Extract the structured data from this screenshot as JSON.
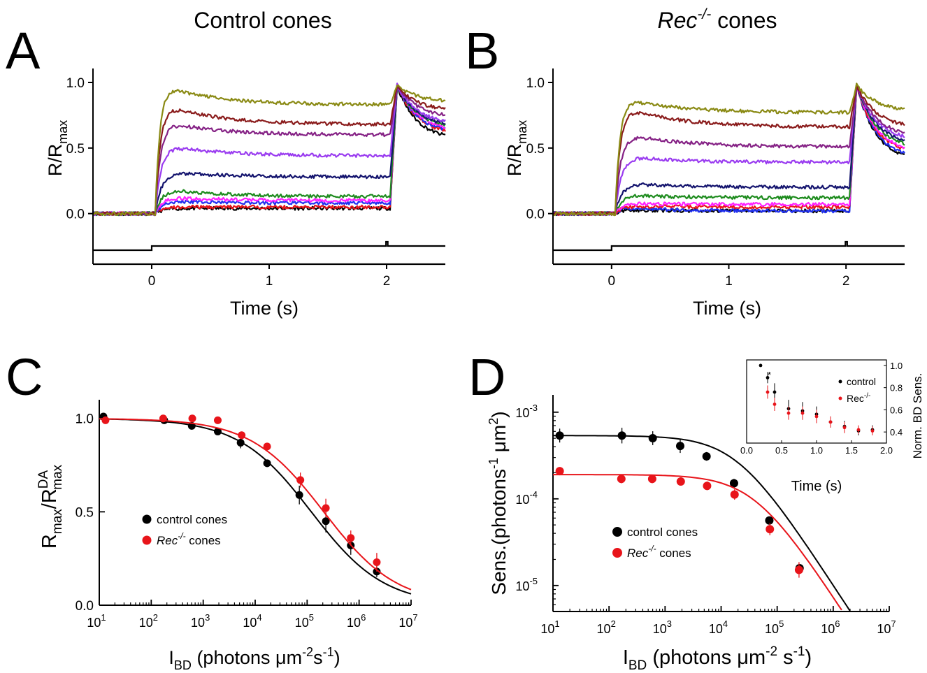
{
  "figure": {
    "panel_letters": [
      "A",
      "B",
      "C",
      "D"
    ],
    "titles": {
      "A": "Control cones",
      "B_prefix": "Rec",
      "B_super": "-/-",
      "B_suffix": " cones"
    }
  },
  "colors": {
    "black": "#000000",
    "red": "#e8141a",
    "blue": "#1f2ff0",
    "magenta": "#ff20ff",
    "green": "#1d8b1d",
    "navy": "#14146e",
    "violet": "#9a3cf0",
    "purple": "#852185",
    "maroon": "#8a1b1b",
    "olive": "#8a8a14"
  },
  "chart_data": [
    {
      "panel": "A",
      "type": "line",
      "title": "Control cones",
      "xlabel": "Time (s)",
      "ylabel": {
        "main": "R/R",
        "sub": "max"
      },
      "xlim": [
        -0.5,
        2.5
      ],
      "ylim": [
        -0.05,
        1.08
      ],
      "xticks": [
        0,
        1,
        2
      ],
      "yticks": [
        0.0,
        0.5,
        1.0
      ],
      "ytick_labels": [
        "0.0",
        "0.5",
        "1.0"
      ],
      "step_on": 0,
      "step_off": 2.03,
      "series": [
        {
          "color": "black",
          "plateau": 0.04,
          "early": 0.04,
          "peak2": 0.97,
          "end": 0.56
        },
        {
          "color": "red",
          "plateau": 0.05,
          "early": 0.05,
          "peak2": 0.98,
          "end": 0.6
        },
        {
          "color": "blue",
          "plateau": 0.08,
          "early": 0.1,
          "peak2": 0.98,
          "end": 0.61
        },
        {
          "color": "magenta",
          "plateau": 0.1,
          "early": 0.13,
          "peak2": 0.98,
          "end": 0.63
        },
        {
          "color": "green",
          "plateau": 0.13,
          "early": 0.2,
          "peak2": 0.98,
          "end": 0.65
        },
        {
          "color": "navy",
          "plateau": 0.28,
          "early": 0.33,
          "peak2": 0.98,
          "end": 0.66
        },
        {
          "color": "violet",
          "plateau": 0.44,
          "early": 0.54,
          "peak2": 0.98,
          "end": 0.68
        },
        {
          "color": "purple",
          "plateau": 0.6,
          "early": 0.72,
          "peak2": 0.98,
          "end": 0.73
        },
        {
          "color": "maroon",
          "plateau": 0.68,
          "early": 0.86,
          "peak2": 0.98,
          "end": 0.78
        },
        {
          "color": "olive",
          "plateau": 0.83,
          "early": 1.0,
          "peak2": 0.98,
          "end": 0.85
        }
      ]
    },
    {
      "panel": "B",
      "type": "line",
      "title": "Rec-/- cones",
      "xlabel": "Time (s)",
      "ylabel": {
        "main": "R/R",
        "sub": "max"
      },
      "xlim": [
        -0.5,
        2.5
      ],
      "ylim": [
        -0.05,
        1.08
      ],
      "xticks": [
        0,
        1,
        2
      ],
      "yticks": [
        0.0,
        0.5,
        1.0
      ],
      "ytick_labels": [
        "0.0",
        "0.5",
        "1.0"
      ],
      "step_on": 0,
      "step_off": 2.03,
      "series": [
        {
          "color": "black",
          "plateau": 0.02,
          "early": 0.03,
          "peak2": 0.98,
          "end": 0.39
        },
        {
          "color": "blue",
          "plateau": 0.02,
          "early": 0.05,
          "peak2": 0.98,
          "end": 0.41
        },
        {
          "color": "red",
          "plateau": 0.05,
          "early": 0.06,
          "peak2": 0.98,
          "end": 0.44
        },
        {
          "color": "magenta",
          "plateau": 0.07,
          "early": 0.08,
          "peak2": 0.98,
          "end": 0.46
        },
        {
          "color": "green",
          "plateau": 0.12,
          "early": 0.15,
          "peak2": 0.98,
          "end": 0.49
        },
        {
          "color": "navy",
          "plateau": 0.2,
          "early": 0.24,
          "peak2": 0.98,
          "end": 0.52
        },
        {
          "color": "violet",
          "plateau": 0.39,
          "early": 0.45,
          "peak2": 0.98,
          "end": 0.55
        },
        {
          "color": "purple",
          "plateau": 0.51,
          "early": 0.63,
          "peak2": 0.98,
          "end": 0.58
        },
        {
          "color": "maroon",
          "plateau": 0.66,
          "early": 0.84,
          "peak2": 0.98,
          "end": 0.65
        },
        {
          "color": "olive",
          "plateau": 0.77,
          "early": 0.9,
          "peak2": 0.98,
          "end": 0.78
        }
      ]
    },
    {
      "panel": "C",
      "type": "scatter",
      "xlabel": {
        "main": "I",
        "sub": "BD",
        "rest": " (photons μm",
        "sup1": "-2",
        "rest2": "s",
        "sup2": "-1",
        "close": ")"
      },
      "ylabel": {
        "main": "R",
        "sub": "max",
        "slash": "/R",
        "sup": "DA",
        "sub2": "max"
      },
      "xscale": "log",
      "xlim": [
        1,
        7
      ],
      "ylim": [
        0,
        1.1
      ],
      "xticks": [
        1,
        2,
        3,
        4,
        5,
        6,
        7
      ],
      "xtick_base": "10",
      "yticks": [
        0.0,
        0.5,
        1.0
      ],
      "ytick_labels": [
        "0.0",
        "0.5",
        "1.0"
      ],
      "legend": {
        "position": "center-left",
        "entries": [
          {
            "color": "black",
            "label": "control cones"
          },
          {
            "color": "red",
            "label_italic": "Rec",
            "label_super": "-/-",
            "label_rest": " cones"
          }
        ]
      },
      "series": [
        {
          "name": "control cones",
          "color": "black",
          "fit_half": 5.08,
          "fit_slope": 0.62,
          "points": [
            {
              "x": 1.08,
              "y": 1.01,
              "err": 0.01
            },
            {
              "x": 2.25,
              "y": 0.99,
              "err": 0.01
            },
            {
              "x": 2.78,
              "y": 0.96,
              "err": 0.02
            },
            {
              "x": 3.28,
              "y": 0.93,
              "err": 0.01
            },
            {
              "x": 3.72,
              "y": 0.87,
              "err": 0.03
            },
            {
              "x": 4.23,
              "y": 0.76,
              "err": 0.02
            },
            {
              "x": 4.85,
              "y": 0.59,
              "err": 0.05
            },
            {
              "x": 5.36,
              "y": 0.45,
              "err": 0.06
            },
            {
              "x": 5.84,
              "y": 0.32,
              "err": 0.05
            },
            {
              "x": 6.34,
              "y": 0.18,
              "err": 0.03
            }
          ]
        },
        {
          "name": "Rec-/- cones",
          "color": "red",
          "fit_half": 5.32,
          "fit_slope": 0.62,
          "points": [
            {
              "x": 1.12,
              "y": 0.99,
              "err": 0.01
            },
            {
              "x": 2.23,
              "y": 1.0,
              "err": 0.01
            },
            {
              "x": 2.79,
              "y": 1.0,
              "err": 0.01
            },
            {
              "x": 3.28,
              "y": 0.99,
              "err": 0.01
            },
            {
              "x": 3.74,
              "y": 0.91,
              "err": 0.02
            },
            {
              "x": 4.23,
              "y": 0.85,
              "err": 0.02
            },
            {
              "x": 4.87,
              "y": 0.67,
              "err": 0.04
            },
            {
              "x": 5.36,
              "y": 0.52,
              "err": 0.05
            },
            {
              "x": 5.84,
              "y": 0.36,
              "err": 0.04
            },
            {
              "x": 6.34,
              "y": 0.23,
              "err": 0.05
            }
          ]
        }
      ]
    },
    {
      "panel": "D",
      "type": "scatter",
      "xlabel": {
        "main": "I",
        "sub": "BD",
        "rest": " (photons μm",
        "sup1": "-2",
        "rest2": " s",
        "sup2": "-1",
        "close": ")"
      },
      "ylabel": {
        "main": "Sens.(photons",
        "sup1": "-1",
        "rest": " μm",
        "sup2": "2",
        "close": ")"
      },
      "xscale": "log",
      "yscale": "log",
      "xlim": [
        1,
        7
      ],
      "ylim": [
        -5.3,
        -2.8
      ],
      "xticks": [
        1,
        2,
        3,
        4,
        5,
        6,
        7
      ],
      "yticks": [
        -5,
        -4,
        -3
      ],
      "tick_base": "10",
      "legend": {
        "position": "lower-left",
        "entries": [
          {
            "color": "black",
            "label": "control cones"
          },
          {
            "color": "red",
            "label_italic": "Rec",
            "label_super": "-/-",
            "label_rest": " cones"
          }
        ]
      },
      "series": [
        {
          "name": "control cones",
          "color": "black",
          "fit_s0": -3.27,
          "fit_half": 4.28,
          "points": [
            {
              "x": 1.12,
              "y": -3.27,
              "err": 0.08
            },
            {
              "x": 2.23,
              "y": -3.27,
              "err": 0.09
            },
            {
              "x": 2.78,
              "y": -3.3,
              "err": 0.08
            },
            {
              "x": 3.27,
              "y": -3.39,
              "err": 0.08
            },
            {
              "x": 3.74,
              "y": -3.51,
              "err": 0.05
            },
            {
              "x": 4.23,
              "y": -3.82,
              "err": 0.05
            },
            {
              "x": 4.86,
              "y": -4.25,
              "err": 0.04
            },
            {
              "x": 5.4,
              "y": -4.8,
              "err": 0.04
            }
          ]
        },
        {
          "name": "Rec-/- cones",
          "color": "red",
          "fit_s0": -3.72,
          "fit_half": 4.6,
          "points": [
            {
              "x": 1.12,
              "y": -3.68,
              "err": 0.02
            },
            {
              "x": 2.22,
              "y": -3.77,
              "err": 0.05
            },
            {
              "x": 2.77,
              "y": -3.77,
              "err": 0.05
            },
            {
              "x": 3.28,
              "y": -3.8,
              "err": 0.04
            },
            {
              "x": 3.75,
              "y": -3.85,
              "err": 0.05
            },
            {
              "x": 4.24,
              "y": -3.95,
              "err": 0.06
            },
            {
              "x": 4.87,
              "y": -4.35,
              "err": 0.07
            },
            {
              "x": 5.39,
              "y": -4.82,
              "err": 0.09
            }
          ]
        }
      ],
      "inset": {
        "type": "scatter",
        "xlabel": "Time (s)",
        "ylabel": "Norm. BD Sens.",
        "xlim": [
          0,
          2.0
        ],
        "ylim": [
          0.3,
          1.05
        ],
        "xticks": [
          0,
          0.5,
          1.0,
          1.5,
          2.0
        ],
        "xtick_labels": [
          "0.0",
          "0.5",
          "1.0",
          "1.5",
          "2.0"
        ],
        "yticks": [
          0.4,
          0.6,
          0.8,
          1.0
        ],
        "ytick_labels": [
          "0.4",
          "0.6",
          "0.8",
          "1.0"
        ],
        "annotation": "*",
        "legend": {
          "position": "top-right",
          "entries": [
            {
              "color": "black",
              "label": "control"
            },
            {
              "color": "red",
              "label": "Rec",
              "label_super": "-/-"
            }
          ]
        },
        "series": [
          {
            "name": "control",
            "color": "black",
            "points": [
              {
                "x": 0.2,
                "y": 1.0,
                "err": 0.0
              },
              {
                "x": 0.3,
                "y": 0.89,
                "err": 0.05
              },
              {
                "x": 0.4,
                "y": 0.76,
                "err": 0.08
              },
              {
                "x": 0.6,
                "y": 0.61,
                "err": 0.08
              },
              {
                "x": 0.8,
                "y": 0.59,
                "err": 0.08
              },
              {
                "x": 1.0,
                "y": 0.56,
                "err": 0.07
              },
              {
                "x": 1.2,
                "y": 0.49,
                "err": 0.05
              },
              {
                "x": 1.4,
                "y": 0.45,
                "err": 0.05
              },
              {
                "x": 1.6,
                "y": 0.41,
                "err": 0.04
              },
              {
                "x": 1.8,
                "y": 0.42,
                "err": 0.04
              }
            ]
          },
          {
            "name": "Rec-/-",
            "color": "red",
            "points": [
              {
                "x": 0.3,
                "y": 0.76,
                "err": 0.06
              },
              {
                "x": 0.4,
                "y": 0.65,
                "err": 0.06
              },
              {
                "x": 0.6,
                "y": 0.57,
                "err": 0.06
              },
              {
                "x": 0.8,
                "y": 0.57,
                "err": 0.06
              },
              {
                "x": 1.0,
                "y": 0.54,
                "err": 0.06
              },
              {
                "x": 1.2,
                "y": 0.49,
                "err": 0.05
              },
              {
                "x": 1.4,
                "y": 0.44,
                "err": 0.05
              },
              {
                "x": 1.6,
                "y": 0.42,
                "err": 0.04
              },
              {
                "x": 1.8,
                "y": 0.41,
                "err": 0.04
              }
            ]
          }
        ]
      }
    }
  ]
}
